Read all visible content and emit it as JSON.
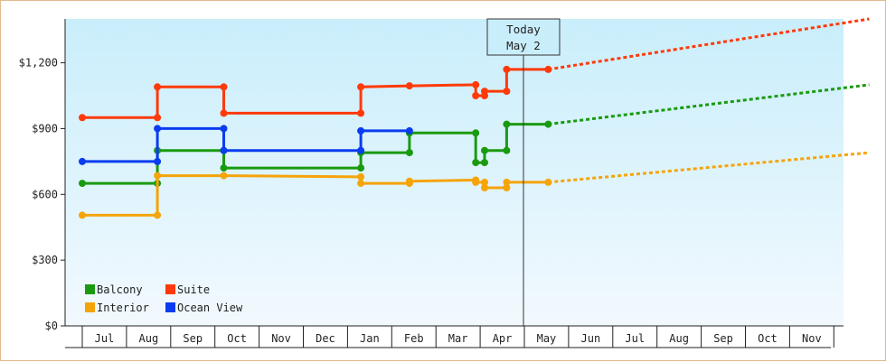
{
  "colors": {
    "Balcony": "#1a9a0f",
    "Suite": "#ff3a0a",
    "Interior": "#f5a40a",
    "Ocean View": "#0a3cf0",
    "bg_top": "#c9eefb",
    "bg_bottom": "#f2f9fe"
  },
  "today": {
    "line1": "Today",
    "line2": "May 2"
  },
  "chart_data": {
    "type": "line",
    "ylim": [
      0,
      1400
    ],
    "y_ticks": [
      {
        "value": 0,
        "label": "$0"
      },
      {
        "value": 300,
        "label": "$300"
      },
      {
        "value": 600,
        "label": "$600"
      },
      {
        "value": 900,
        "label": "$900"
      },
      {
        "value": 1200,
        "label": "$1,200"
      }
    ],
    "x_ticks": [
      "Jul",
      "Aug",
      "Sep",
      "Oct",
      "Nov",
      "Dec",
      "Jan",
      "Feb",
      "Mar",
      "Apr",
      "May",
      "Jun",
      "Jul",
      "Aug",
      "Sep",
      "Oct",
      "Nov"
    ],
    "legend": {
      "placement": "bottom-left",
      "entries": [
        "Balcony",
        "Suite",
        "Interior",
        "Ocean View"
      ]
    },
    "today_marker_month": 10.04,
    "series": [
      {
        "name": "Suite",
        "history": [
          [
            -0.5,
            950
          ],
          [
            1.2,
            950
          ],
          [
            1.2,
            1090
          ],
          [
            2.7,
            1090
          ],
          [
            2.7,
            970
          ],
          [
            5.8,
            970
          ],
          [
            5.8,
            1090
          ],
          [
            6.9,
            1095
          ],
          [
            8.4,
            1100
          ],
          [
            8.4,
            1050
          ],
          [
            8.6,
            1050
          ],
          [
            8.6,
            1070
          ],
          [
            9.1,
            1070
          ],
          [
            9.1,
            1170
          ],
          [
            10.04,
            1170
          ]
        ],
        "dots": [
          [
            -0.5,
            950
          ],
          [
            1.2,
            950
          ],
          [
            1.2,
            1090
          ],
          [
            2.7,
            1090
          ],
          [
            2.7,
            970
          ],
          [
            5.8,
            970
          ],
          [
            5.8,
            1090
          ],
          [
            6.9,
            1095
          ],
          [
            8.4,
            1100
          ],
          [
            8.4,
            1050
          ],
          [
            8.6,
            1050
          ],
          [
            8.6,
            1070
          ],
          [
            9.1,
            1070
          ],
          [
            9.1,
            1170
          ],
          [
            10.04,
            1170
          ]
        ],
        "forecast": [
          [
            10.04,
            1170
          ],
          [
            17.3,
            1400
          ]
        ]
      },
      {
        "name": "Balcony",
        "history": [
          [
            -0.5,
            650
          ],
          [
            1.2,
            650
          ],
          [
            1.2,
            800
          ],
          [
            2.7,
            800
          ],
          [
            2.7,
            720
          ],
          [
            5.8,
            720
          ],
          [
            5.8,
            790
          ],
          [
            6.9,
            790
          ],
          [
            6.9,
            880
          ],
          [
            8.4,
            880
          ],
          [
            8.4,
            745
          ],
          [
            8.6,
            745
          ],
          [
            8.6,
            800
          ],
          [
            9.1,
            800
          ],
          [
            9.1,
            920
          ],
          [
            10.04,
            920
          ]
        ],
        "dots": [
          [
            -0.5,
            650
          ],
          [
            1.2,
            650
          ],
          [
            1.2,
            800
          ],
          [
            2.7,
            800
          ],
          [
            2.7,
            720
          ],
          [
            5.8,
            720
          ],
          [
            5.8,
            790
          ],
          [
            6.9,
            790
          ],
          [
            6.9,
            880
          ],
          [
            8.4,
            880
          ],
          [
            8.4,
            745
          ],
          [
            8.6,
            745
          ],
          [
            8.6,
            800
          ],
          [
            9.1,
            800
          ],
          [
            9.1,
            920
          ],
          [
            10.04,
            920
          ]
        ],
        "forecast": [
          [
            10.04,
            920
          ],
          [
            17.3,
            1100
          ]
        ]
      },
      {
        "name": "Ocean View",
        "history": [
          [
            -0.5,
            750
          ],
          [
            1.2,
            750
          ],
          [
            1.2,
            900
          ],
          [
            2.7,
            900
          ],
          [
            2.7,
            800
          ],
          [
            5.8,
            800
          ],
          [
            5.8,
            890
          ],
          [
            6.9,
            890
          ]
        ],
        "dots": [
          [
            -0.5,
            750
          ],
          [
            1.2,
            750
          ],
          [
            1.2,
            900
          ],
          [
            2.7,
            900
          ],
          [
            2.7,
            800
          ],
          [
            5.8,
            800
          ],
          [
            5.8,
            890
          ],
          [
            6.9,
            890
          ]
        ],
        "forecast": []
      },
      {
        "name": "Interior",
        "history": [
          [
            -0.5,
            505
          ],
          [
            1.2,
            505
          ],
          [
            1.2,
            685
          ],
          [
            2.7,
            685
          ],
          [
            5.8,
            680
          ],
          [
            5.8,
            650
          ],
          [
            6.9,
            650
          ],
          [
            6.9,
            660
          ],
          [
            8.4,
            665
          ],
          [
            8.4,
            655
          ],
          [
            8.6,
            655
          ],
          [
            8.6,
            630
          ],
          [
            9.1,
            630
          ],
          [
            9.1,
            655
          ],
          [
            10.04,
            655
          ]
        ],
        "dots": [
          [
            -0.5,
            505
          ],
          [
            1.2,
            505
          ],
          [
            1.2,
            685
          ],
          [
            2.7,
            685
          ],
          [
            5.8,
            680
          ],
          [
            5.8,
            650
          ],
          [
            6.9,
            650
          ],
          [
            6.9,
            660
          ],
          [
            8.4,
            665
          ],
          [
            8.4,
            655
          ],
          [
            8.6,
            655
          ],
          [
            8.6,
            630
          ],
          [
            9.1,
            630
          ],
          [
            9.1,
            655
          ],
          [
            10.04,
            655
          ]
        ],
        "forecast": [
          [
            10.04,
            655
          ],
          [
            17.3,
            790
          ]
        ]
      }
    ]
  }
}
